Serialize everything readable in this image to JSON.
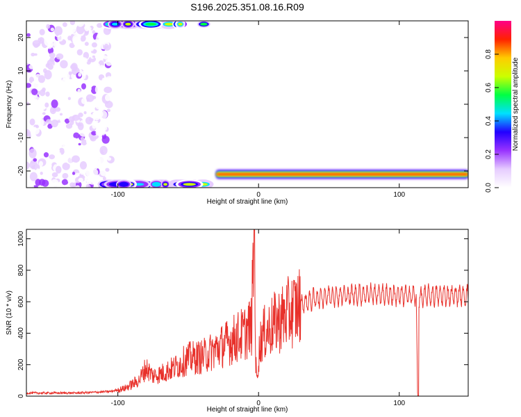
{
  "title": "S196.2025.351.08.16.R09",
  "chart_data": [
    {
      "type": "heatmap",
      "xlabel": "Height of straight line (km)",
      "ylabel": "Frequency (Hz)",
      "xlim": [
        -165,
        149
      ],
      "ylim": [
        -25,
        25
      ],
      "x_ticks": [
        -100,
        0,
        100
      ],
      "y_ticks": [
        20,
        10,
        0,
        -10,
        -20
      ],
      "colorbar": {
        "label": "Normalized spectral amplitude",
        "range": [
          0,
          1
        ],
        "ticks": [
          "0.0",
          "0.2",
          "0.4",
          "0.6",
          "0.8"
        ],
        "colors": [
          "#ffffff",
          "#e6ccff",
          "#9933ff",
          "#2200ff",
          "#00e0ff",
          "#00ff44",
          "#ccff00",
          "#ffcc00",
          "#ff2200",
          "#ff0088"
        ]
      },
      "features": [
        {
          "name": "noise",
          "x_range": [
            -165,
            -105
          ],
          "y_range": [
            -25,
            25
          ],
          "amplitude": 0.2
        },
        {
          "name": "band",
          "x_range": [
            -30,
            149
          ],
          "y_center": -21,
          "amplitude": 0.95
        },
        {
          "name": "edge-top",
          "x_range": [
            -107,
            -35
          ],
          "y_center": 24,
          "amplitude": 0.45
        },
        {
          "name": "edge-bottom",
          "x_range": [
            -107,
            -35
          ],
          "y_center": -24,
          "amplitude": 0.45
        }
      ]
    },
    {
      "type": "line",
      "xlabel": "Height of straight line (km)",
      "ylabel": "SNR (10 * v/v)",
      "xlim": [
        -165,
        149
      ],
      "ylim": [
        0,
        1060
      ],
      "x_ticks": [
        -100,
        0,
        100
      ],
      "y_ticks": [
        0,
        200,
        400,
        600,
        800,
        1000
      ],
      "color": "#e8302a",
      "series": [
        {
          "x": [
            -165,
            -150,
            -130,
            -115,
            -105,
            -95,
            -85,
            -80,
            -75,
            -70,
            -60,
            -50,
            -40,
            -30,
            -20,
            -10,
            -5,
            -3,
            -2,
            -1,
            0,
            2,
            10,
            20,
            30,
            40,
            50,
            60,
            80,
            100,
            112,
            113,
            114,
            115,
            120,
            140,
            149
          ],
          "y": [
            20,
            20,
            20,
            25,
            30,
            50,
            100,
            180,
            130,
            140,
            180,
            240,
            250,
            300,
            350,
            400,
            450,
            1050,
            200,
            100,
            250,
            380,
            450,
            520,
            580,
            620,
            640,
            640,
            650,
            640,
            640,
            0,
            640,
            620,
            640,
            640,
            640
          ]
        }
      ]
    }
  ]
}
